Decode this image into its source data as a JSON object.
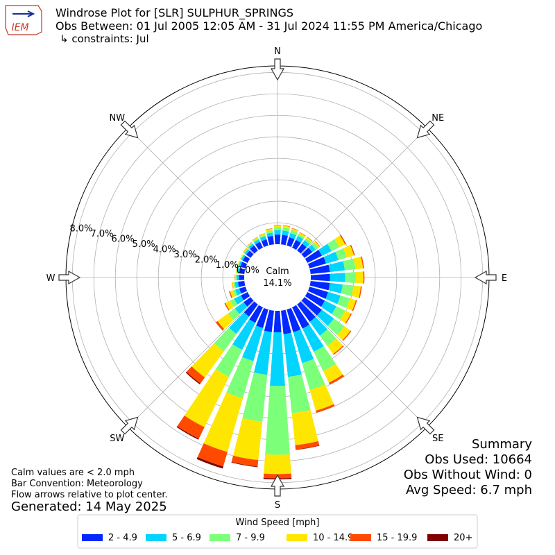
{
  "chart_data": {
    "type": "windrose",
    "title": "Windrose Plot for [SLR] SULPHUR_SPRINGS",
    "subtitle": "Obs Between: 01 Jul 2005 12:05 AM - 31 Jul 2024 11:55 PM America/Chicago",
    "constraints": "↳ constraints: Jul",
    "logo_text": "IEM",
    "directions": [
      0,
      10,
      20,
      30,
      40,
      50,
      60,
      70,
      80,
      90,
      100,
      110,
      120,
      130,
      140,
      150,
      160,
      170,
      180,
      190,
      200,
      210,
      220,
      230,
      240,
      250,
      260,
      270,
      280,
      290,
      300,
      310,
      320,
      330,
      340,
      350
    ],
    "compass_labels": [
      "N",
      "NE",
      "E",
      "SE",
      "S",
      "SW",
      "W",
      "NW"
    ],
    "rlim": [
      0,
      8.3
    ],
    "rticks": [
      {
        "value": 0,
        "label": "0.0%"
      },
      {
        "value": 1,
        "label": "1.0%"
      },
      {
        "value": 2,
        "label": "2.0%"
      },
      {
        "value": 3,
        "label": "3.0%"
      },
      {
        "value": 4,
        "label": "4.0%"
      },
      {
        "value": 5,
        "label": "5.0%"
      },
      {
        "value": 6,
        "label": "6.0%"
      },
      {
        "value": 7,
        "label": "7.0%"
      },
      {
        "value": 8,
        "label": "8.0%"
      }
    ],
    "grid": true,
    "calm": {
      "label": "Calm",
      "value": 14.1,
      "value_label": "14.1%"
    },
    "legend_title": "Wind Speed [mph]",
    "series": [
      {
        "name": "2 - 4.9",
        "color": "#0028ff",
        "values": [
          0.45,
          0.45,
          0.4,
          0.4,
          0.4,
          0.45,
          0.75,
          0.8,
          0.9,
          0.9,
          0.9,
          0.9,
          0.9,
          1.0,
          1.0,
          1.1,
          1.1,
          1.1,
          1.0,
          1.0,
          0.9,
          0.8,
          0.7,
          0.4,
          0.35,
          0.3,
          0.3,
          0.25,
          0.25,
          0.25,
          0.25,
          0.25,
          0.3,
          0.3,
          0.3,
          0.4
        ]
      },
      {
        "name": "5 - 6.9",
        "color": "#00d4ff",
        "values": [
          0.2,
          0.2,
          0.2,
          0.2,
          0.2,
          0.2,
          0.5,
          0.6,
          0.7,
          0.7,
          0.6,
          0.6,
          0.6,
          0.7,
          0.8,
          1.2,
          1.5,
          2.0,
          2.5,
          2.0,
          1.6,
          1.4,
          1.0,
          0.5,
          0.35,
          0.2,
          0.15,
          0.1,
          0.08,
          0.08,
          0.08,
          0.1,
          0.1,
          0.12,
          0.15,
          0.15
        ]
      },
      {
        "name": "7 - 9.9",
        "color": "#7cff79",
        "values": [
          0.15,
          0.15,
          0.15,
          0.1,
          0.1,
          0.15,
          0.4,
          0.4,
          0.5,
          0.5,
          0.5,
          0.45,
          0.45,
          0.6,
          0.6,
          1.0,
          1.3,
          1.7,
          3.2,
          2.2,
          1.8,
          1.4,
          1.0,
          0.4,
          0.2,
          0.1,
          0.07,
          0.05,
          0.04,
          0.04,
          0.04,
          0.05,
          0.05,
          0.07,
          0.08,
          0.1
        ]
      },
      {
        "name": "10 - 14.9",
        "color": "#ffe600",
        "values": [
          0.08,
          0.08,
          0.08,
          0.08,
          0.08,
          0.08,
          0.3,
          0.35,
          0.35,
          0.35,
          0.35,
          0.3,
          0.3,
          0.35,
          0.45,
          0.6,
          1.0,
          1.5,
          0.9,
          1.8,
          2.6,
          2.6,
          1.5,
          0.6,
          0.25,
          0.15,
          0.07,
          0.04,
          0.03,
          0.03,
          0.03,
          0.04,
          0.04,
          0.05,
          0.06,
          0.08
        ]
      },
      {
        "name": "15 - 19.9",
        "color": "#ff4a00",
        "values": [
          0.02,
          0.02,
          0.02,
          0.02,
          0.02,
          0.02,
          0.05,
          0.05,
          0.05,
          0.05,
          0.05,
          0.05,
          0.05,
          0.05,
          0.05,
          0.1,
          0.1,
          0.2,
          0.2,
          0.3,
          0.7,
          0.6,
          0.35,
          0.1,
          0.05,
          0.05,
          0.01,
          0.01,
          0,
          0,
          0,
          0.01,
          0.01,
          0.01,
          0.01,
          0.02
        ]
      },
      {
        "name": "20+",
        "color": "#800000",
        "values": [
          0,
          0,
          0,
          0,
          0,
          0,
          0,
          0,
          0,
          0,
          0,
          0,
          0,
          0,
          0,
          0,
          0,
          0.02,
          0.05,
          0.03,
          0.1,
          0.05,
          0.05,
          0,
          0,
          0,
          0,
          0,
          0,
          0,
          0,
          0,
          0,
          0,
          0,
          0
        ]
      }
    ],
    "notes": [
      "Calm values are < 2.0 mph",
      "Bar Convention: Meteorology",
      "Flow arrows relative to plot center."
    ],
    "generated": "Generated: 14 May 2025",
    "summary": [
      "Summary",
      "Obs Used: 10664",
      "Obs Without Wind: 0",
      "Avg Speed: 6.7 mph"
    ]
  }
}
